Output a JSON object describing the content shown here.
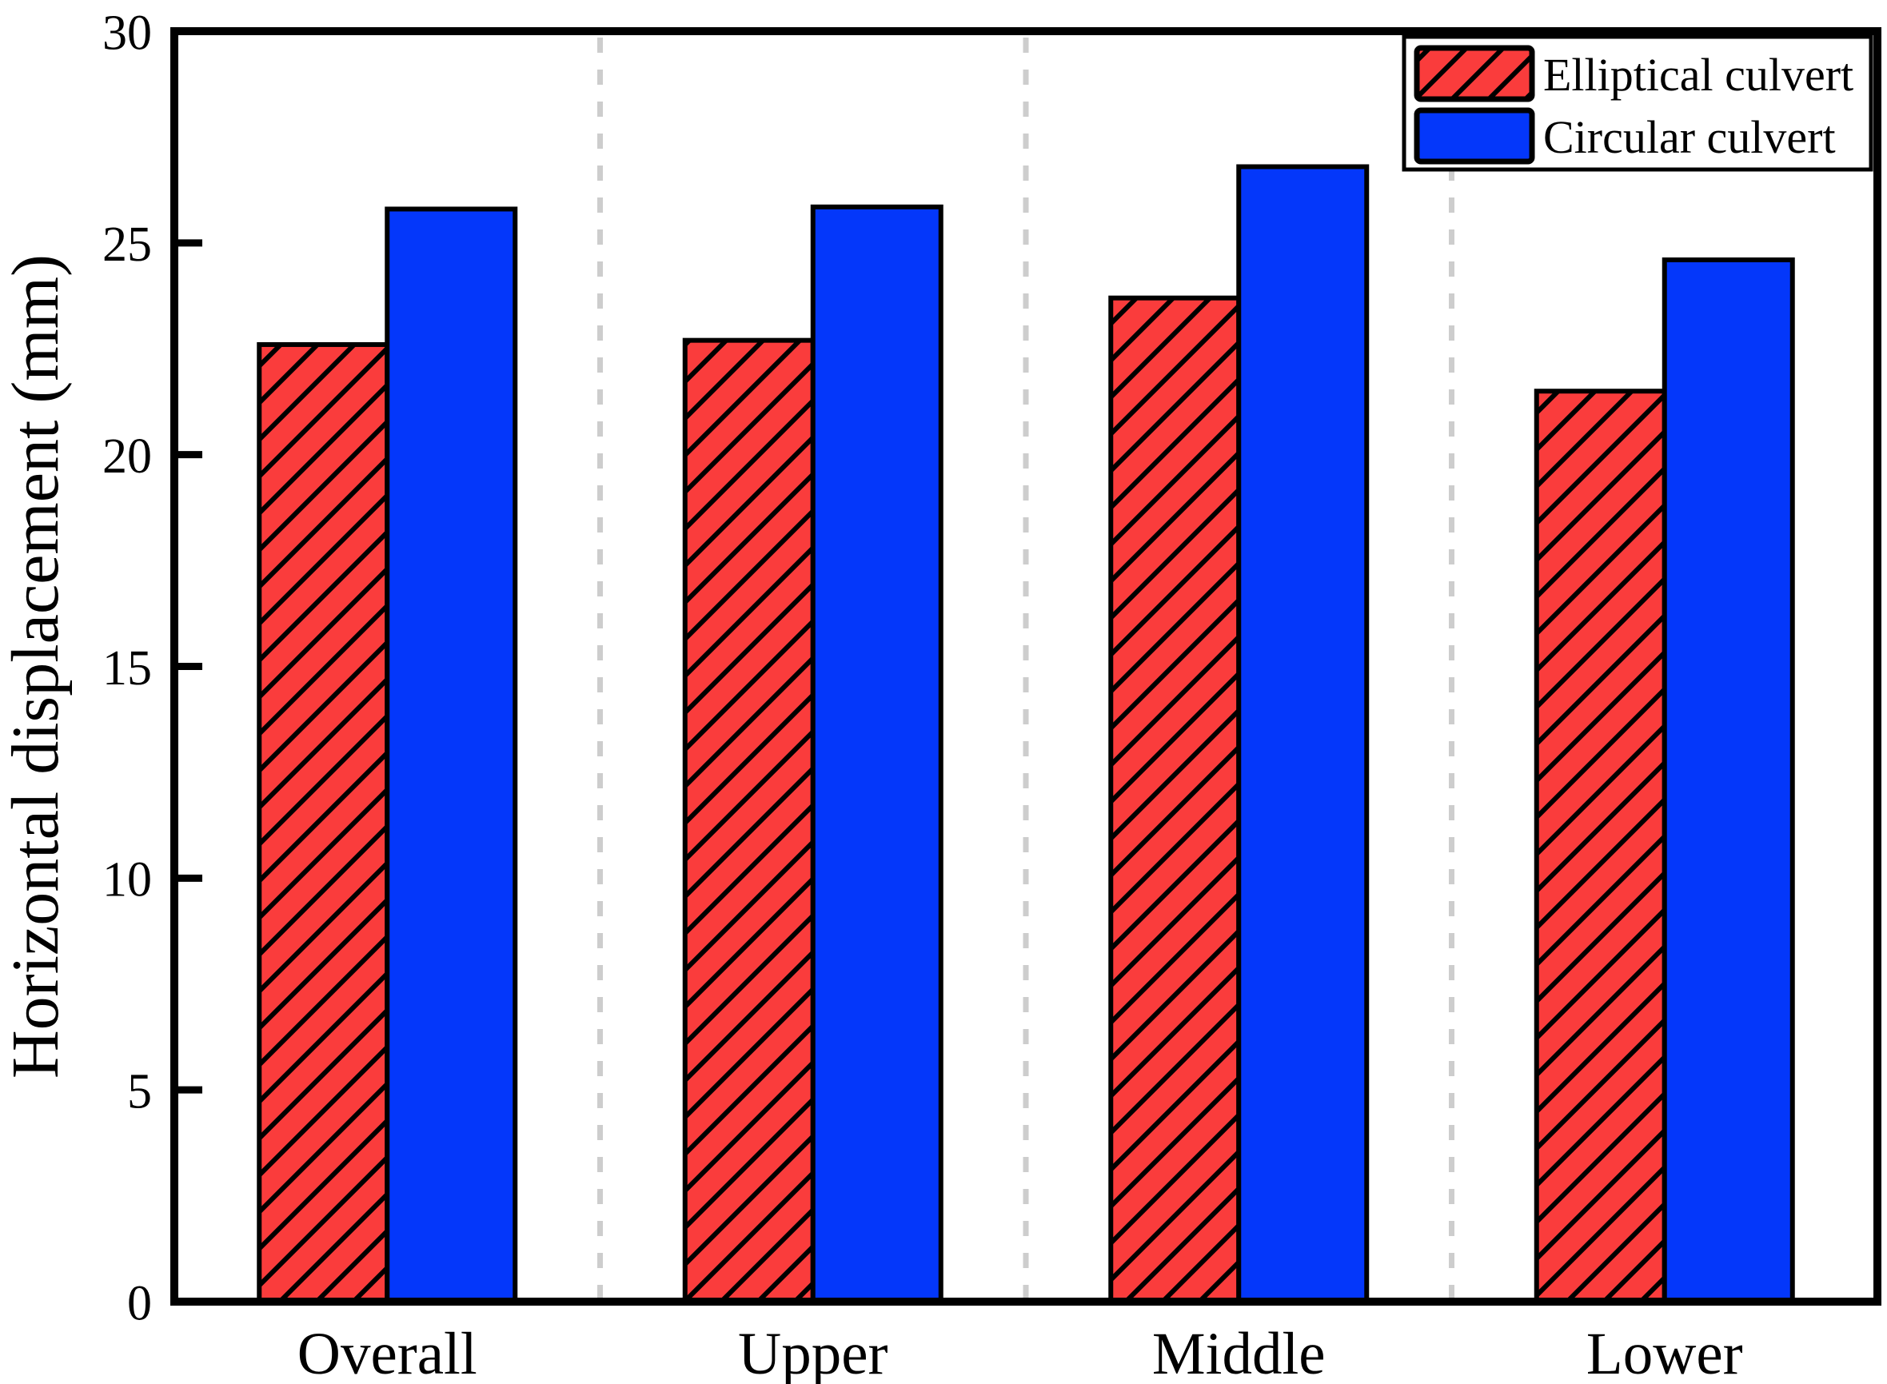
{
  "figure": {
    "background": "#ffffff",
    "plot_border_color": "#000000"
  },
  "chart_data": {
    "type": "bar",
    "title": "",
    "categories": [
      "Overall",
      "Upper",
      "Middle",
      "Lower"
    ],
    "series": [
      {
        "name": "Elliptical culvert",
        "values": [
          22.6,
          22.7,
          23.7,
          21.5
        ],
        "fill": "#fa3c3c",
        "hatch": true
      },
      {
        "name": "Circular culvert",
        "values": [
          25.8,
          25.85,
          26.8,
          24.6
        ],
        "fill": "#0437fa",
        "hatch": false
      }
    ],
    "xlabel": "",
    "ylabel": "Horizontal displacement (mm)",
    "ylim": [
      0,
      30
    ],
    "yticks": [
      0,
      5,
      10,
      15,
      20,
      25,
      30
    ],
    "grid": "vertical dashed separators between category cells",
    "separator_color": "#cdcdcd",
    "bar_edge_color": "#000000",
    "legend_position": "top-right",
    "legend_border_color": "#000000",
    "legend_background": "#ffffff"
  },
  "legend": {
    "items": [
      {
        "label": "Elliptical culvert",
        "swatch": "red-hatched"
      },
      {
        "label": "Circular culvert",
        "swatch": "blue-solid"
      }
    ]
  }
}
